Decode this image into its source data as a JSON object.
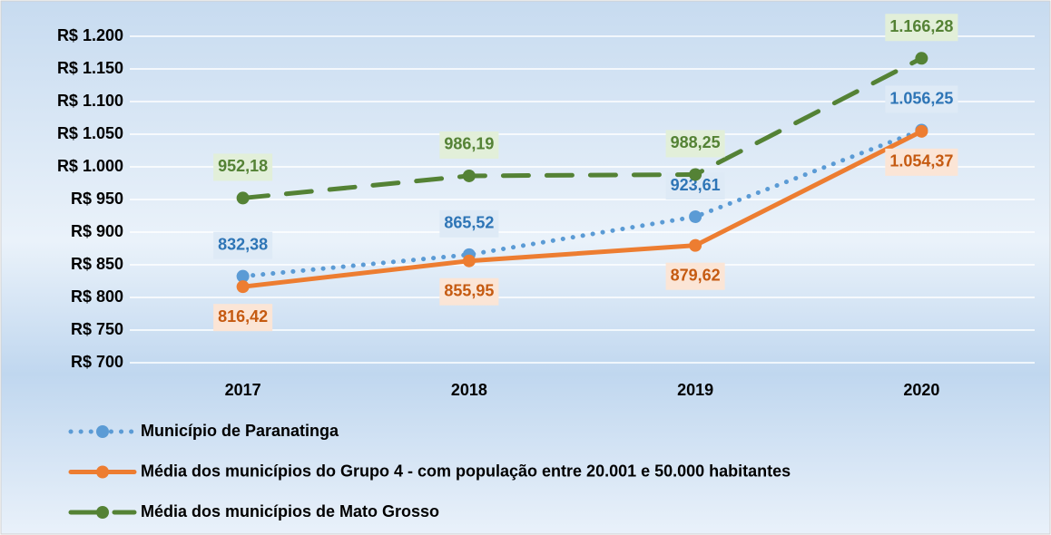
{
  "chart_data": {
    "type": "line",
    "categories": [
      "2017",
      "2018",
      "2019",
      "2020"
    ],
    "series": [
      {
        "name": "Município de Paranatinga",
        "color": "#5b9bd5",
        "style": "dotted",
        "label_color": "#2e75b6",
        "label_bg": "#deeaf6",
        "label_side": "above",
        "values": [
          832.38,
          865.52,
          923.61,
          1056.25
        ],
        "value_labels": [
          "832,38",
          "865,52",
          "923,61",
          "1.056,25"
        ]
      },
      {
        "name": "Média dos municípios do Grupo 4 - com população entre 20.001 e 50.000 habitantes",
        "color": "#ed7d31",
        "style": "solid",
        "label_color": "#c55a11",
        "label_bg": "#fbe5d6",
        "label_side": "below",
        "values": [
          816.42,
          855.95,
          879.62,
          1054.37
        ],
        "value_labels": [
          "816,42",
          "855,95",
          "879,62",
          "1.054,37"
        ]
      },
      {
        "name": "Média dos municípios de Mato Grosso",
        "color": "#548235",
        "style": "dashed",
        "label_color": "#548235",
        "label_bg": "#e2efd9",
        "label_side": "above",
        "values": [
          952.18,
          986.19,
          988.25,
          1166.28
        ],
        "value_labels": [
          "952,18",
          "986,19",
          "988,25",
          "1.166,28"
        ]
      }
    ],
    "ylim": [
      700,
      1200
    ],
    "yticks": [
      {
        "value": 700,
        "label": "R$ 700"
      },
      {
        "value": 750,
        "label": "R$ 750"
      },
      {
        "value": 800,
        "label": "R$ 800"
      },
      {
        "value": 850,
        "label": "R$ 850"
      },
      {
        "value": 900,
        "label": "R$ 900"
      },
      {
        "value": 950,
        "label": "R$ 950"
      },
      {
        "value": 1000,
        "label": "R$ 1.000"
      },
      {
        "value": 1050,
        "label": "R$ 1.050"
      },
      {
        "value": 1100,
        "label": "R$ 1.100"
      },
      {
        "value": 1150,
        "label": "R$ 1.150"
      },
      {
        "value": 1200,
        "label": "R$ 1.200"
      }
    ],
    "grid": true,
    "legend": "bottom"
  }
}
